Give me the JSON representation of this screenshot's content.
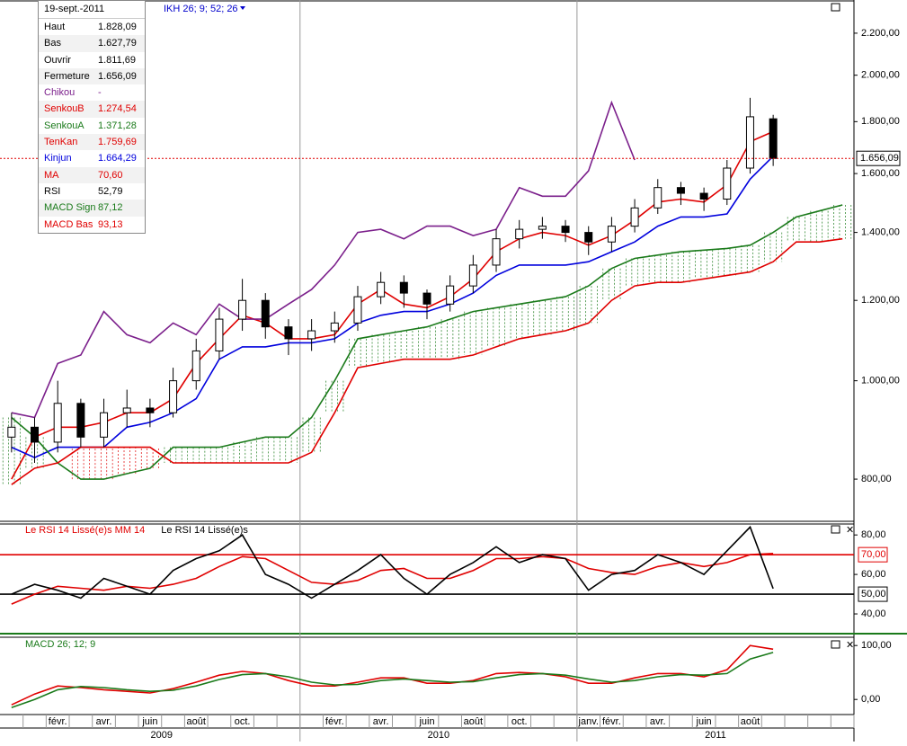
{
  "chart_data": [
    {
      "type": "candlestick",
      "log_scale": true,
      "cloud": true,
      "indicator_label": "IKH 26; 9; 52; 26",
      "last_price_label": "1.656,09",
      "last_price_color": "#e00000",
      "info_box": {
        "date": "19-sept.-2011",
        "rows": [
          {
            "label": "Haut",
            "value": "1.828,09",
            "color": "#000000"
          },
          {
            "label": "Bas",
            "value": "1.627,79",
            "color": "#000000"
          },
          {
            "label": "Ouvrir",
            "value": "1.811,69",
            "color": "#000000"
          },
          {
            "label": "Fermeture",
            "value": "1.656,09",
            "color": "#000000"
          },
          {
            "label": "Chikou",
            "value": "-",
            "color": "#7b1f8b"
          },
          {
            "label": "SenkouB",
            "value": "1.274,54",
            "color": "#e00000"
          },
          {
            "label": "SenkouA",
            "value": "1.371,28",
            "color": "#1a7a1a"
          },
          {
            "label": "TenKan",
            "value": "1.759,69",
            "color": "#e00000"
          },
          {
            "label": "Kinjun",
            "value": "1.664,29",
            "color": "#0000dd"
          },
          {
            "label": "MA",
            "value": "70,60",
            "color": "#e00000"
          },
          {
            "label": "RSI",
            "value": "52,79",
            "color": "#000000"
          },
          {
            "label": "MACD Sign",
            "value": "87,12",
            "color": "#1a7a1a"
          },
          {
            "label": "MACD Bas",
            "value": "93,13",
            "color": "#e00000"
          }
        ]
      },
      "categories": [
        null,
        null,
        "févr.",
        null,
        "avr.",
        null,
        "juin",
        null,
        "août",
        null,
        "oct.",
        null,
        null,
        null,
        "févr.",
        null,
        "avr.",
        null,
        "juin",
        null,
        "août",
        null,
        "oct.",
        null,
        null,
        "janv.",
        "févr.",
        null,
        "avr.",
        null,
        "juin",
        null,
        "août",
        null,
        null,
        null,
        null
      ],
      "years": [
        "2009",
        "2010",
        "2011"
      ],
      "ylim": [
        727,
        2372
      ],
      "yticks": [
        {
          "value": 800,
          "label": "800,00"
        },
        {
          "value": 1000,
          "label": "1.000,00"
        },
        {
          "value": 1200,
          "label": "1.200,00"
        },
        {
          "value": 1400,
          "label": "1.400,00"
        },
        {
          "value": 1600,
          "label": "1.600,00"
        },
        {
          "value": 1800,
          "label": "1.800,00"
        },
        {
          "value": 2000,
          "label": "2.000,00"
        },
        {
          "value": 2200,
          "label": "2.200,00"
        }
      ],
      "candles": {
        "open": [
          880,
          900,
          870,
          950,
          880,
          930,
          940,
          930,
          1000,
          1070,
          1150,
          1200,
          1130,
          1100,
          1120,
          1140,
          1210,
          1250,
          1220,
          1190,
          1240,
          1300,
          1380,
          1410,
          1420,
          1400,
          1370,
          1420,
          1480,
          1550,
          1530,
          1510,
          1620,
          1811.69,
          null,
          null,
          null
        ],
        "high": [
          930,
          920,
          1000,
          960,
          960,
          980,
          960,
          1030,
          1100,
          1180,
          1260,
          1220,
          1150,
          1150,
          1170,
          1240,
          1280,
          1270,
          1230,
          1270,
          1330,
          1410,
          1440,
          1450,
          1440,
          1420,
          1450,
          1510,
          1580,
          1570,
          1550,
          1650,
          1900,
          1828.09,
          null,
          null,
          null
        ],
        "low": [
          850,
          830,
          850,
          860,
          860,
          900,
          900,
          920,
          980,
          1050,
          1120,
          1100,
          1060,
          1070,
          1090,
          1120,
          1190,
          1180,
          1150,
          1170,
          1220,
          1280,
          1350,
          1380,
          1370,
          1330,
          1340,
          1400,
          1460,
          1490,
          1470,
          1490,
          1600,
          1627.79,
          null,
          null,
          null
        ],
        "close": [
          900,
          870,
          950,
          880,
          930,
          940,
          930,
          1000,
          1070,
          1150,
          1200,
          1130,
          1100,
          1120,
          1140,
          1210,
          1250,
          1220,
          1190,
          1240,
          1300,
          1380,
          1410,
          1420,
          1400,
          1370,
          1420,
          1480,
          1550,
          1530,
          1510,
          1620,
          1820,
          1656.09,
          null,
          null,
          null
        ]
      },
      "series": [
        {
          "color": "#e00000",
          "values": [
            800,
            880,
            900,
            900,
            910,
            930,
            930,
            960,
            1040,
            1100,
            1160,
            1140,
            1100,
            1100,
            1110,
            1190,
            1230,
            1190,
            1180,
            1210,
            1260,
            1340,
            1380,
            1400,
            1390,
            1360,
            1390,
            1440,
            1500,
            1510,
            1500,
            1560,
            1720,
            1759.69,
            null,
            null,
            null
          ]
        },
        {
          "color": "#0000dd",
          "values": [
            860,
            840,
            860,
            860,
            860,
            900,
            910,
            930,
            960,
            1050,
            1080,
            1080,
            1090,
            1090,
            1100,
            1140,
            1160,
            1170,
            1170,
            1190,
            1220,
            1270,
            1300,
            1300,
            1300,
            1310,
            1340,
            1370,
            1420,
            1450,
            1450,
            1460,
            1580,
            1664.29,
            null,
            null,
            null
          ]
        },
        {
          "color": "#7b1f8b",
          "values": [
            930,
            920,
            1040,
            1060,
            1170,
            1110,
            1090,
            1140,
            1110,
            1190,
            1150,
            1150,
            1190,
            1230,
            1300,
            1400,
            1410,
            1380,
            1420,
            1420,
            1390,
            1410,
            1550,
            1520,
            1520,
            1610,
            1880,
            1650,
            null,
            null,
            null,
            null,
            null,
            null,
            null,
            null,
            null
          ]
        },
        {
          "color": "#1a7a1a",
          "values": [
            920,
            880,
            830,
            800,
            800,
            810,
            820,
            860,
            860,
            860,
            870,
            880,
            880,
            920,
            1000,
            1100,
            1110,
            1120,
            1130,
            1150,
            1170,
            1180,
            1190,
            1200,
            1210,
            1240,
            1290,
            1320,
            1330,
            1340,
            1345,
            1350,
            1360,
            1400,
            1450,
            1470,
            1490
          ]
        },
        {
          "color": "#e00000",
          "values": [
            790,
            820,
            830,
            860,
            860,
            860,
            860,
            830,
            830,
            830,
            830,
            830,
            830,
            850,
            930,
            1030,
            1040,
            1050,
            1050,
            1050,
            1060,
            1080,
            1100,
            1110,
            1120,
            1140,
            1200,
            1240,
            1250,
            1250,
            1260,
            1270,
            1280,
            1310,
            1370,
            1370,
            1380
          ]
        }
      ]
    },
    {
      "type": "line",
      "ylim": [
        30,
        86
      ],
      "yticks": [
        {
          "value": 40,
          "label": "40,00"
        },
        {
          "value": 60,
          "label": "60,00"
        },
        {
          "value": 80,
          "label": "80,00"
        }
      ],
      "levels": [
        {
          "value": 70,
          "label": "70,00",
          "color": "#e00000"
        },
        {
          "value": 50,
          "label": "50,00",
          "color": "#000000"
        }
      ],
      "series": [
        {
          "name": "Le RSI 14 Lissé(e)s MM 14",
          "color": "#e00000",
          "values": [
            45,
            50,
            54,
            53,
            52,
            54,
            53,
            55,
            58,
            64,
            69,
            68,
            62,
            56,
            55,
            57,
            62,
            63,
            58,
            58,
            62,
            68,
            68,
            69,
            68,
            63,
            61,
            60,
            64,
            66,
            64,
            66,
            70,
            70.6,
            null,
            null,
            null
          ]
        },
        {
          "name": "Le RSI 14 Lissé(e)s",
          "color": "#000000",
          "values": [
            50,
            55,
            52,
            48,
            58,
            54,
            50,
            62,
            68,
            72,
            80,
            60,
            55,
            48,
            55,
            62,
            70,
            58,
            50,
            60,
            66,
            74,
            66,
            70,
            68,
            52,
            60,
            62,
            70,
            66,
            60,
            72,
            84,
            52.79,
            null,
            null,
            null
          ]
        }
      ]
    },
    {
      "type": "line",
      "title": "MACD 26; 12; 9",
      "ylim": [
        -28,
        117
      ],
      "yticks": [
        {
          "value": 0,
          "label": "0,00"
        },
        {
          "value": 100,
          "label": "100,00"
        }
      ],
      "series": [
        {
          "color": "#e00000",
          "values": [
            -10,
            10,
            25,
            22,
            18,
            15,
            12,
            20,
            32,
            45,
            52,
            48,
            35,
            25,
            25,
            32,
            40,
            40,
            30,
            30,
            35,
            48,
            50,
            48,
            42,
            30,
            30,
            40,
            48,
            48,
            42,
            55,
            100,
            93.13,
            null,
            null,
            null
          ]
        },
        {
          "color": "#1a7a1a",
          "values": [
            -15,
            0,
            18,
            24,
            22,
            18,
            15,
            17,
            25,
            37,
            46,
            48,
            42,
            32,
            27,
            28,
            35,
            38,
            35,
            32,
            33,
            40,
            46,
            48,
            45,
            38,
            32,
            35,
            42,
            46,
            45,
            48,
            75,
            87.12,
            null,
            null,
            null
          ]
        }
      ]
    }
  ]
}
